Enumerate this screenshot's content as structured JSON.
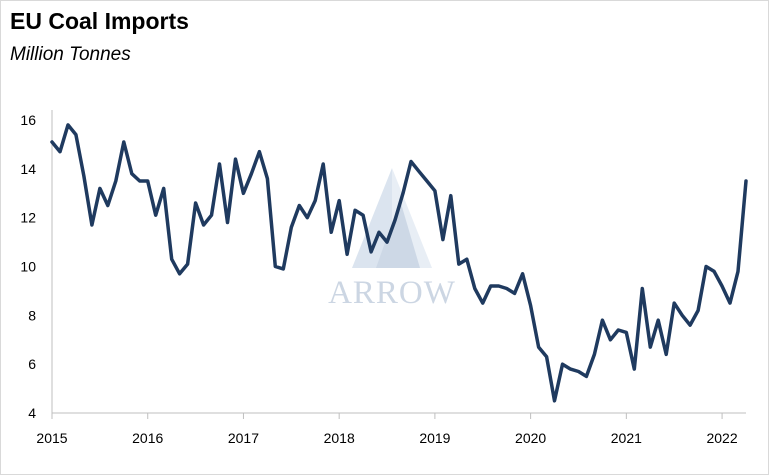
{
  "title": "EU Coal Imports",
  "subtitle": "Million Tonnes",
  "watermark": {
    "text": "ARROW"
  },
  "chart_data": {
    "type": "line",
    "title": "EU Coal Imports",
    "subtitle": "Million Tonnes",
    "xlabel": "",
    "ylabel": "",
    "xlim": [
      2015.0,
      2022.25
    ],
    "ylim": [
      4,
      16
    ],
    "yticks": [
      4,
      6,
      8,
      10,
      12,
      14,
      16
    ],
    "xticks": [
      2015,
      2016,
      2017,
      2018,
      2019,
      2020,
      2021,
      2022
    ],
    "grid": false,
    "legend": "none",
    "line_color": "#1f3a5f",
    "series": [
      {
        "values": [
          15.1,
          14.7,
          15.8,
          15.4,
          13.7,
          11.7,
          13.2,
          12.5,
          13.5,
          15.1,
          13.8,
          13.5,
          13.5,
          12.1,
          13.2,
          10.3,
          9.7,
          10.1,
          12.6,
          11.7,
          12.1,
          14.2,
          11.8,
          14.4,
          13.0,
          13.8,
          14.7,
          13.6,
          10.0,
          9.9,
          11.6,
          12.5,
          12.0,
          12.7,
          14.2,
          11.4,
          12.7,
          10.5,
          12.3,
          12.1,
          10.6,
          11.4,
          11.0,
          11.9,
          13.0,
          14.3,
          13.9,
          13.5,
          13.1,
          11.1,
          12.9,
          10.1,
          10.3,
          9.1,
          8.5,
          9.2,
          9.2,
          9.1,
          8.9,
          9.7,
          8.4,
          6.7,
          6.3,
          4.5,
          6.0,
          5.8,
          5.7,
          5.5,
          6.4,
          7.8,
          7.0,
          7.4,
          7.3,
          5.8,
          9.1,
          6.7,
          7.8,
          6.4,
          8.5,
          8.0,
          7.6,
          8.2,
          10.0,
          9.8,
          9.2,
          8.5,
          9.8,
          13.5
        ]
      }
    ],
    "x_start": 2015.0,
    "x_step_years": 0.08333
  }
}
